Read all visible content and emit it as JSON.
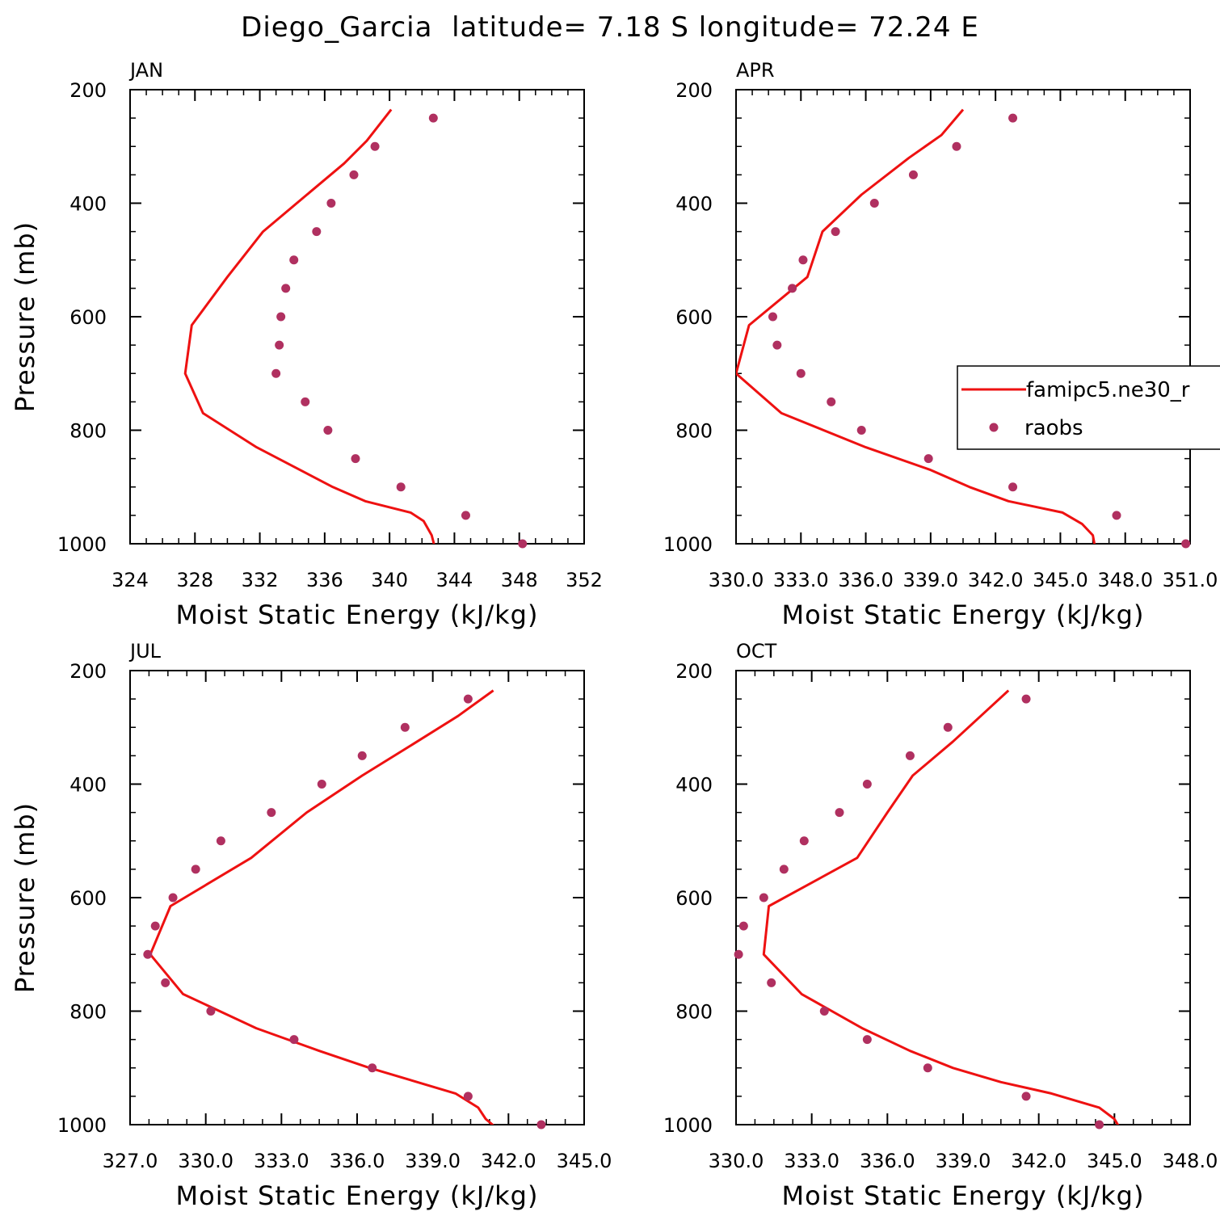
{
  "figure_title": "Diego_Garcia  latitude= 7.18 S longitude= 72.24 E",
  "colors": {
    "model": "#ee1111",
    "obs": "#b03060",
    "axis": "#000000"
  },
  "legend": {
    "model_label": "famipc5.ne30_r",
    "obs_label": "raobs",
    "panel": "APR"
  },
  "chart_data": [
    {
      "type": "line",
      "panel": "JAN",
      "xlabel": "Moist Static Energy (kJ/kg)",
      "ylabel": "Pressure (mb)",
      "xlim": [
        324,
        352
      ],
      "xticks": [
        "324",
        "328",
        "332",
        "336",
        "340",
        "344",
        "348",
        "352"
      ],
      "ylim": [
        200,
        1000
      ],
      "yticks": [
        "200",
        "400",
        "600",
        "800",
        "1000"
      ],
      "y_inverted": true,
      "model": {
        "p": [
          235,
          290,
          330,
          385,
          450,
          530,
          615,
          700,
          770,
          830,
          900,
          925,
          945,
          960,
          985,
          1007
        ],
        "mse": [
          340.1,
          338.6,
          337.2,
          334.9,
          332.2,
          330.0,
          327.8,
          327.4,
          328.5,
          331.8,
          336.5,
          338.5,
          341.3,
          342.1,
          342.6,
          342.8
        ]
      },
      "obs": {
        "p": [
          250,
          300,
          350,
          400,
          450,
          500,
          550,
          600,
          650,
          700,
          750,
          800,
          850,
          900,
          950,
          1000
        ],
        "mse": [
          342.7,
          339.1,
          337.8,
          336.4,
          335.5,
          334.1,
          333.6,
          333.3,
          333.2,
          333.0,
          334.8,
          336.2,
          337.9,
          340.7,
          344.7,
          348.2
        ]
      }
    },
    {
      "type": "line",
      "panel": "APR",
      "xlabel": "Moist Static Energy (kJ/kg)",
      "ylabel": "",
      "xlim": [
        330.0,
        351.0
      ],
      "xticks": [
        "330.0",
        "333.0",
        "336.0",
        "339.0",
        "342.0",
        "345.0",
        "348.0",
        "351.0"
      ],
      "ylim": [
        200,
        1000
      ],
      "yticks": [
        "200",
        "400",
        "600",
        "800",
        "1000"
      ],
      "y_inverted": true,
      "model": {
        "p": [
          235,
          280,
          320,
          385,
          450,
          530,
          615,
          700,
          770,
          830,
          870,
          900,
          925,
          945,
          965,
          985,
          1005
        ],
        "mse": [
          340.5,
          339.5,
          338.0,
          335.8,
          334.0,
          333.3,
          330.6,
          330.0,
          332.1,
          336.0,
          339.0,
          340.8,
          342.6,
          345.1,
          346.0,
          346.5,
          346.6
        ]
      },
      "obs": {
        "p": [
          250,
          300,
          350,
          400,
          450,
          500,
          550,
          600,
          650,
          700,
          750,
          800,
          850,
          900,
          950,
          1000
        ],
        "mse": [
          342.8,
          340.2,
          338.2,
          336.4,
          334.6,
          333.1,
          332.6,
          331.7,
          331.9,
          333.0,
          334.4,
          335.8,
          338.9,
          342.8,
          347.6,
          350.8
        ]
      }
    },
    {
      "type": "line",
      "panel": "JUL",
      "xlabel": "Moist Static Energy (kJ/kg)",
      "ylabel": "Pressure (mb)",
      "xlim": [
        327.0,
        345.0
      ],
      "xticks": [
        "327.0",
        "330.0",
        "333.0",
        "336.0",
        "339.0",
        "342.0",
        "345.0"
      ],
      "ylim": [
        200,
        1000
      ],
      "yticks": [
        "200",
        "400",
        "600",
        "800",
        "1000"
      ],
      "y_inverted": true,
      "model": {
        "p": [
          235,
          280,
          330,
          385,
          450,
          530,
          615,
          700,
          770,
          830,
          870,
          900,
          945,
          970,
          990,
          1005
        ],
        "mse": [
          341.4,
          340.0,
          338.2,
          336.2,
          334.0,
          331.8,
          328.6,
          327.8,
          329.1,
          332.0,
          334.5,
          336.5,
          339.9,
          340.8,
          341.1,
          341.5
        ]
      },
      "obs": {
        "p": [
          250,
          300,
          350,
          400,
          450,
          500,
          550,
          600,
          650,
          700,
          750,
          800,
          850,
          900,
          950,
          1000
        ],
        "mse": [
          340.4,
          337.9,
          336.2,
          334.6,
          332.6,
          330.6,
          329.6,
          328.7,
          328.0,
          327.7,
          328.4,
          330.2,
          333.5,
          336.6,
          340.4,
          343.3
        ]
      }
    },
    {
      "type": "line",
      "panel": "OCT",
      "xlabel": "Moist Static Energy (kJ/kg)",
      "ylabel": "",
      "xlim": [
        330.0,
        348.0
      ],
      "xticks": [
        "330.0",
        "333.0",
        "336.0",
        "339.0",
        "342.0",
        "345.0",
        "348.0"
      ],
      "ylim": [
        200,
        1000
      ],
      "yticks": [
        "200",
        "400",
        "600",
        "800",
        "1000"
      ],
      "y_inverted": true,
      "model": {
        "p": [
          235,
          280,
          325,
          385,
          450,
          530,
          615,
          700,
          770,
          830,
          870,
          900,
          925,
          945,
          970,
          990,
          1005
        ],
        "mse": [
          340.8,
          339.7,
          338.6,
          337.0,
          336.0,
          334.8,
          331.3,
          331.1,
          332.6,
          335.0,
          336.9,
          338.6,
          340.5,
          342.5,
          344.4,
          345.0,
          345.2
        ]
      },
      "obs": {
        "p": [
          250,
          300,
          350,
          400,
          450,
          500,
          550,
          600,
          650,
          700,
          750,
          800,
          850,
          900,
          950,
          1000
        ],
        "mse": [
          341.5,
          338.4,
          336.9,
          335.2,
          334.1,
          332.7,
          331.9,
          331.1,
          330.3,
          330.1,
          331.4,
          333.5,
          335.2,
          337.6,
          341.5,
          344.4
        ]
      }
    }
  ]
}
